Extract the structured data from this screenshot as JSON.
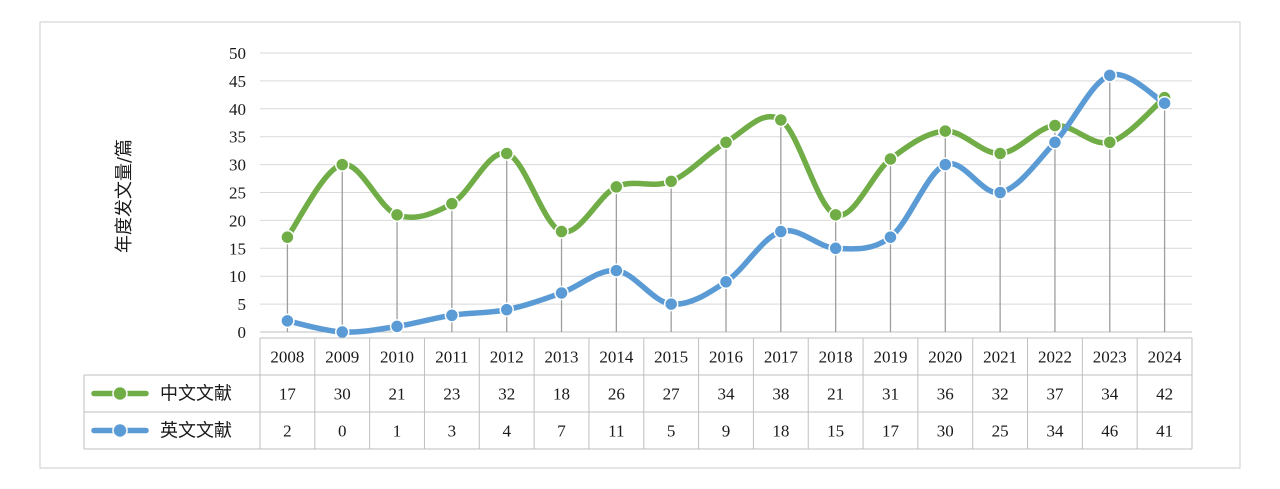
{
  "chart_data": {
    "type": "line",
    "title": "",
    "xlabel": "",
    "ylabel": "年度发文量/篇",
    "ylim": [
      0,
      50
    ],
    "yticks": [
      0,
      5,
      10,
      15,
      20,
      25,
      30,
      35,
      40,
      45,
      50
    ],
    "grid": true,
    "smooth": true,
    "data_table": true,
    "categories": [
      "2008",
      "2009",
      "2010",
      "2011",
      "2012",
      "2013",
      "2014",
      "2015",
      "2016",
      "2017",
      "2018",
      "2019",
      "2020",
      "2021",
      "2022",
      "2023",
      "2024"
    ],
    "series": [
      {
        "name": "中文文献",
        "color": "#70ad47",
        "values": [
          17,
          30,
          21,
          23,
          32,
          18,
          26,
          27,
          34,
          38,
          21,
          31,
          36,
          32,
          37,
          34,
          42
        ]
      },
      {
        "name": "英文文献",
        "color": "#5b9bd5",
        "values": [
          2,
          0,
          1,
          3,
          4,
          7,
          11,
          5,
          9,
          18,
          15,
          17,
          30,
          25,
          34,
          46,
          41
        ]
      }
    ]
  }
}
